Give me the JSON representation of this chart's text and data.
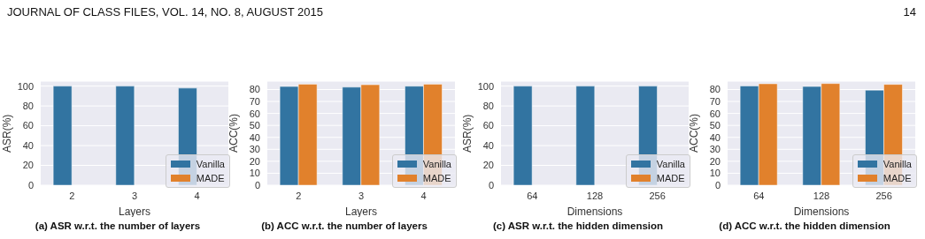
{
  "chart_data": [
    {
      "type": "bar",
      "title": "(a) ASR w.r.t. the number of layers",
      "xlabel": "Layers",
      "ylabel": "ASR(%)",
      "categories": [
        "2",
        "3",
        "4"
      ],
      "series": [
        {
          "name": "Vanilla",
          "color": "#3274a1",
          "values": [
            100,
            100,
            98
          ]
        },
        {
          "name": "MADE",
          "color": "#e1812c",
          "values": [
            0,
            0,
            0
          ]
        }
      ],
      "ylim": [
        0,
        105
      ],
      "yticks": [
        0,
        20,
        40,
        60,
        80,
        100
      ],
      "grid": "y",
      "legend": "bottom right",
      "annotations": [
        "JOURNAL OF CLASS FILES, VOL. 14, NO. 8, AUGUST 2015",
        "14"
      ]
    },
    {
      "type": "bar",
      "title": "(b) ACC w.r.t. the number of layers",
      "xlabel": "Layers",
      "ylabel": "ACC(%)",
      "categories": [
        "2",
        "3",
        "4"
      ],
      "series": [
        {
          "name": "Vanilla",
          "color": "#3274a1",
          "values": [
            82.5,
            82.0,
            82.8
          ]
        },
        {
          "name": "MADE",
          "color": "#e1812c",
          "values": [
            84.5,
            84.0,
            84.5
          ]
        }
      ],
      "ylim": [
        0,
        87
      ],
      "yticks": [
        0,
        10,
        20,
        30,
        40,
        50,
        60,
        70,
        80
      ],
      "grid": "y",
      "legend": "bottom right"
    },
    {
      "type": "bar",
      "title": "(c) ASR w.r.t. the hidden dimension",
      "xlabel": "Dimensions",
      "ylabel": "ASR(%)",
      "categories": [
        "64",
        "128",
        "256"
      ],
      "series": [
        {
          "name": "Vanilla",
          "color": "#3274a1",
          "values": [
            100,
            100,
            100
          ]
        },
        {
          "name": "MADE",
          "color": "#e1812c",
          "values": [
            0,
            0,
            0
          ]
        }
      ],
      "ylim": [
        0,
        105
      ],
      "yticks": [
        0,
        20,
        40,
        60,
        80,
        100
      ],
      "grid": "y",
      "legend": "bottom right"
    },
    {
      "type": "bar",
      "title": "(d) ACC w.r.t. the hidden dimension",
      "xlabel": "Dimensions",
      "ylabel": "ACC(%)",
      "categories": [
        "64",
        "128",
        "256"
      ],
      "series": [
        {
          "name": "Vanilla",
          "color": "#3274a1",
          "values": [
            83.0,
            82.5,
            79.5
          ]
        },
        {
          "name": "MADE",
          "color": "#e1812c",
          "values": [
            84.8,
            85.0,
            84.3
          ]
        }
      ],
      "ylim": [
        0,
        87
      ],
      "yticks": [
        0,
        10,
        20,
        30,
        40,
        50,
        60,
        70,
        80
      ],
      "grid": "y",
      "legend": "bottom right"
    }
  ]
}
